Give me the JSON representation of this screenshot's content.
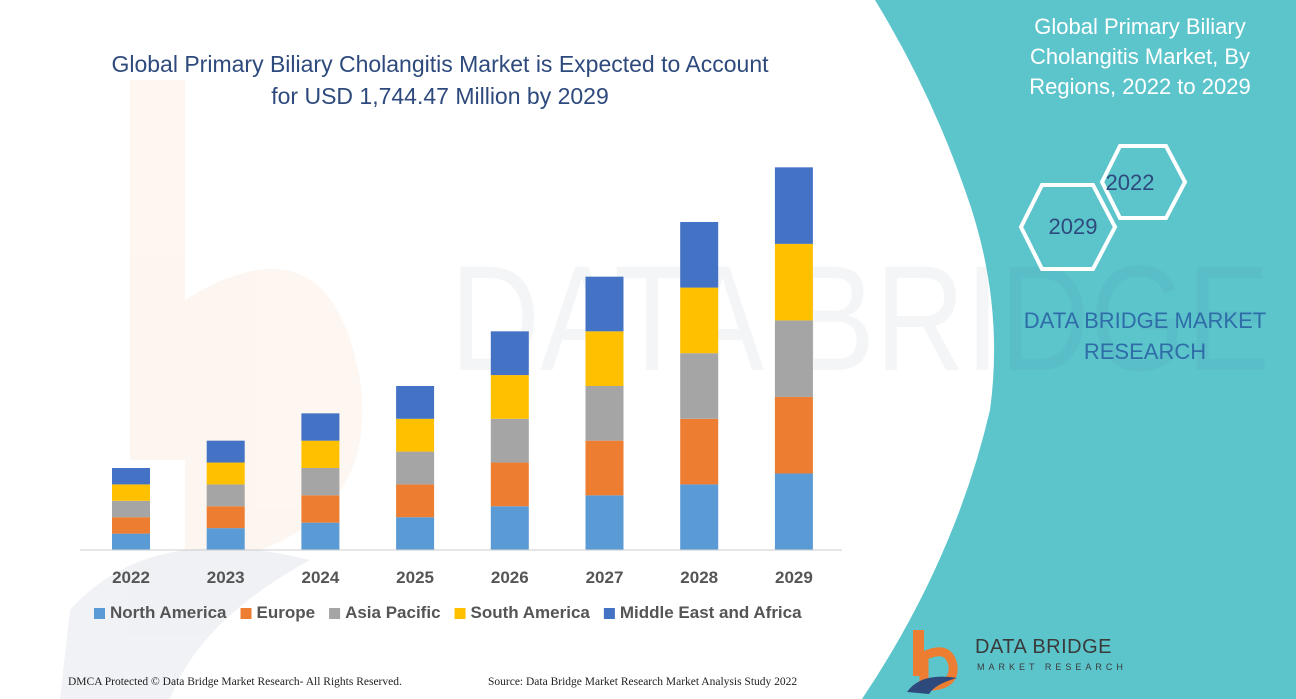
{
  "main_title": "Global Primary Biliary Cholangitis Market is Expected to Account for USD 1,744.47 Million by 2029",
  "side_panel": {
    "title": "Global Primary Biliary Cholangitis Market, By Regions, 2022 to 2029",
    "hex_start": "2022",
    "hex_end": "2029",
    "brand": "DATA BRIDGE MARKET RESEARCH"
  },
  "footer": {
    "copyright": "DMCA Protected © Data Bridge Market Research- All Rights Reserved.",
    "source": "Source: Data Bridge Market Research Market Analysis Study 2022"
  },
  "logo": {
    "name": "DATA BRIDGE",
    "tagline": "MARKET RESEARCH"
  },
  "colors": {
    "panel": "#5cc5cc",
    "title_text": "#2e4a7d"
  },
  "chart_data": {
    "type": "bar",
    "stacked": true,
    "categories": [
      "2022",
      "2023",
      "2024",
      "2025",
      "2026",
      "2027",
      "2028",
      "2029"
    ],
    "series": [
      {
        "name": "North America",
        "color": "#5b9bd5",
        "values": [
          3.0,
          4.0,
          5.0,
          6.0,
          8.0,
          10.0,
          12.0,
          14.0
        ]
      },
      {
        "name": "Europe",
        "color": "#ed7d31",
        "values": [
          3.0,
          4.0,
          5.0,
          6.0,
          8.0,
          10.0,
          12.0,
          14.0
        ]
      },
      {
        "name": "Asia Pacific",
        "color": "#a5a5a5",
        "values": [
          3.0,
          4.0,
          5.0,
          6.0,
          8.0,
          10.0,
          12.0,
          14.0
        ]
      },
      {
        "name": "South America",
        "color": "#ffc000",
        "values": [
          3.0,
          4.0,
          5.0,
          6.0,
          8.0,
          10.0,
          12.0,
          14.0
        ]
      },
      {
        "name": "Middle East and Africa",
        "color": "#4472c4",
        "values": [
          3.0,
          4.0,
          5.0,
          6.0,
          8.0,
          10.0,
          12.0,
          14.0
        ]
      }
    ],
    "ylim": [
      0,
      75
    ],
    "y_axis_visible": false,
    "grid": false,
    "legend_position": "bottom"
  }
}
